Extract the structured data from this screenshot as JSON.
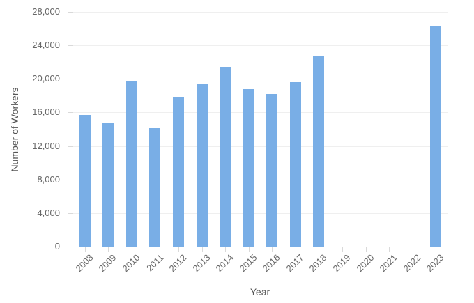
{
  "chart_data": {
    "type": "bar",
    "title": "",
    "xlabel": "Year",
    "ylabel": "Number of Workers",
    "categories": [
      "2008",
      "2009",
      "2010",
      "2011",
      "2012",
      "2013",
      "2014",
      "2015",
      "2016",
      "2017",
      "2018",
      "2019",
      "2020",
      "2021",
      "2022",
      "2023"
    ],
    "values": [
      15700,
      14800,
      19800,
      14100,
      17900,
      19400,
      21400,
      18800,
      18200,
      19600,
      22700,
      0,
      0,
      0,
      0,
      26300
    ],
    "ylim": [
      0,
      28000
    ],
    "y_tick_step": 4000,
    "y_ticks": [
      {
        "value": 0,
        "label": "0"
      },
      {
        "value": 4000,
        "label": "4,000"
      },
      {
        "value": 8000,
        "label": "8,000"
      },
      {
        "value": 12000,
        "label": "12,000"
      },
      {
        "value": 16000,
        "label": "16,000"
      },
      {
        "value": 20000,
        "label": "20,000"
      },
      {
        "value": 24000,
        "label": "24,000"
      },
      {
        "value": 28000,
        "label": "28,000"
      }
    ],
    "grid": "horizontal",
    "legend": "none",
    "x_tick_rotation_deg": -45,
    "colors": {
      "bar": "#79aee6",
      "grid": "#efefef",
      "axis_line": "#b3b3b3",
      "tick_mark": "#d9d9d9",
      "label_text": "#666666",
      "axis_title_text": "#565656",
      "background": "#ffffff"
    }
  }
}
